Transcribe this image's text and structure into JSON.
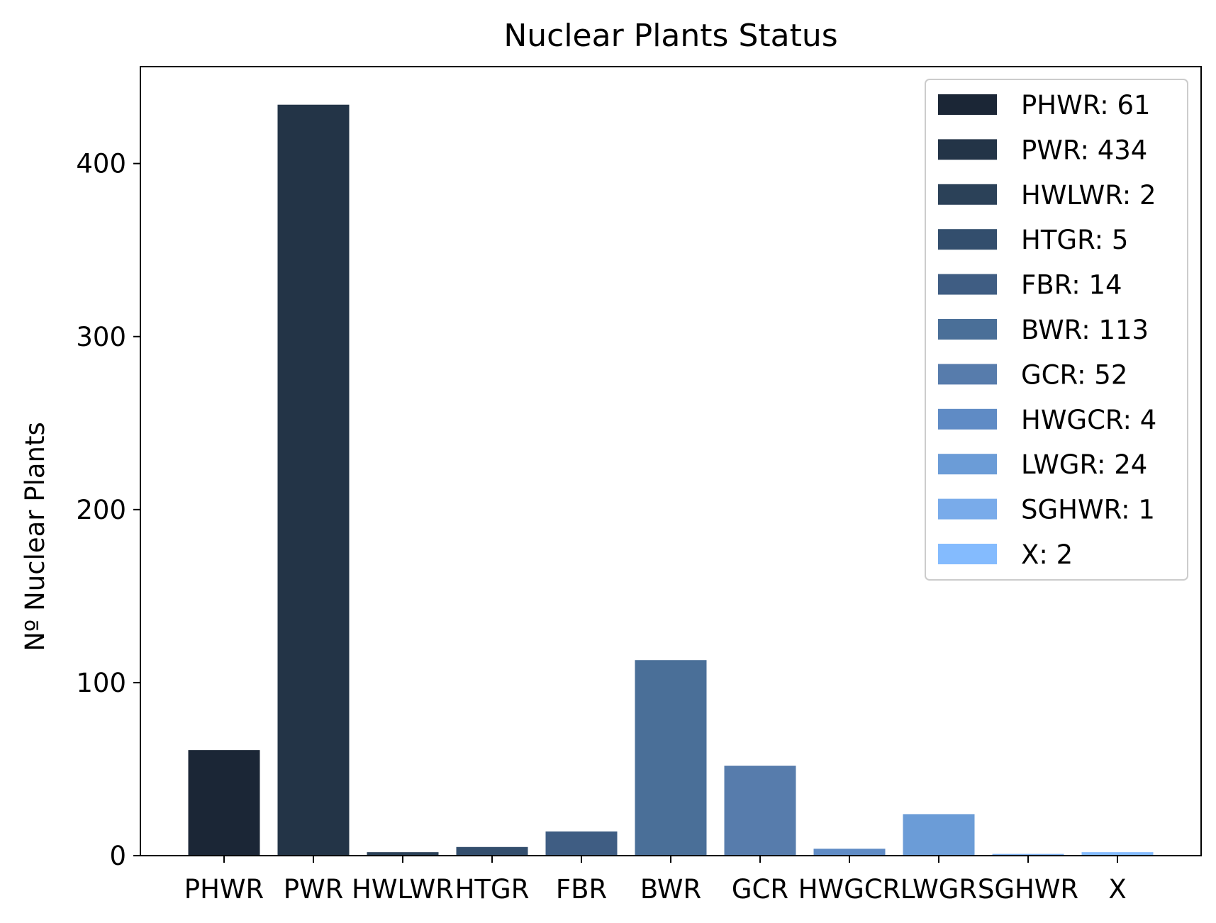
{
  "chart_data": {
    "type": "bar",
    "title": "Nuclear Plants Status",
    "xlabel": "",
    "ylabel": "Nº Nuclear Plants",
    "ylim": [
      0,
      456
    ],
    "yticks": [
      0,
      100,
      200,
      300,
      400
    ],
    "categories": [
      "PHWR",
      "PWR",
      "HWLWR",
      "HTGR",
      "FBR",
      "BWR",
      "GCR",
      "HWGCR",
      "LWGR",
      "SGHWR",
      "X"
    ],
    "values": [
      61,
      434,
      2,
      5,
      14,
      113,
      52,
      4,
      24,
      1,
      2
    ],
    "colors": [
      "#1b2636",
      "#233447",
      "#2b4158",
      "#334e6d",
      "#3f5d83",
      "#4a6f98",
      "#577cac",
      "#5f8bc5",
      "#6b9cd7",
      "#79abea",
      "#84bbfe"
    ],
    "legend": {
      "placement": "top-right",
      "entries": [
        "PHWR: 61",
        "PWR: 434",
        "HWLWR: 2",
        "HTGR: 5",
        "FBR: 14",
        "BWR: 113",
        "GCR: 52",
        "HWGCR: 4",
        "LWGR: 24",
        "SGHWR: 1",
        "X: 2"
      ]
    },
    "grid": false
  }
}
